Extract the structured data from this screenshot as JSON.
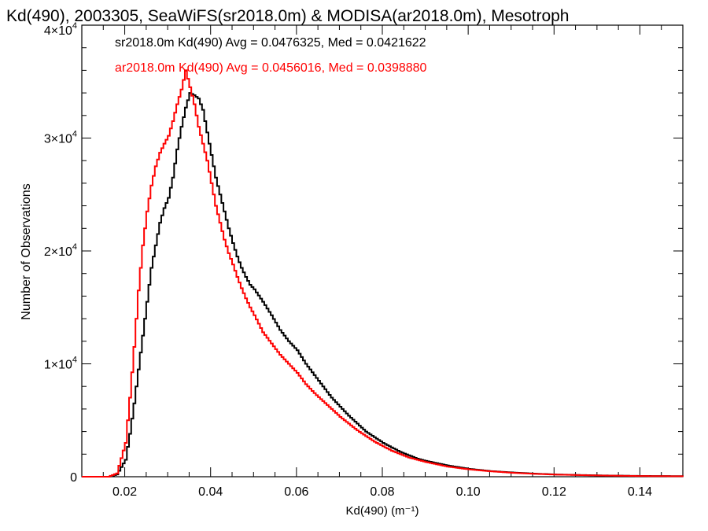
{
  "chart_data": {
    "type": "line",
    "title": "Kd(490), 2003305, SeaWiFS(sr2018.0m) & MODISA(ar2018.0m), Mesotroph",
    "xlabel": "Kd(490) (m⁻¹)",
    "ylabel": "Number of Observations",
    "xlim": [
      0.01,
      0.15
    ],
    "ylim": [
      0,
      40000
    ],
    "x_ticks": [
      0.02,
      0.04,
      0.06,
      0.08,
      0.1,
      0.12,
      0.14
    ],
    "x_tick_labels": [
      "0.02",
      "0.04",
      "0.06",
      "0.08",
      "0.10",
      "0.12",
      "0.14"
    ],
    "y_ticks": [
      0,
      10000,
      20000,
      30000,
      40000
    ],
    "y_tick_labels": [
      {
        "base": "0",
        "exp": ""
      },
      {
        "base": "1×10",
        "exp": "4"
      },
      {
        "base": "2×10",
        "exp": "4"
      },
      {
        "base": "3×10",
        "exp": "4"
      },
      {
        "base": "4×10",
        "exp": "4"
      }
    ],
    "legend": [
      {
        "text": "sr2018.0m Kd(490) Avg = 0.0476325, Med = 0.0421622",
        "color": "#000000"
      },
      {
        "text": "ar2018.0m Kd(490) Avg = 0.0456016, Med = 0.0398880",
        "color": "#ff0000"
      }
    ],
    "legend_placement": "top-left",
    "grid": false,
    "series": [
      {
        "color": "#000000",
        "x": [
          0.01,
          0.016,
          0.018,
          0.02,
          0.021,
          0.022,
          0.023,
          0.024,
          0.025,
          0.026,
          0.027,
          0.028,
          0.029,
          0.03,
          0.031,
          0.032,
          0.033,
          0.034,
          0.035,
          0.036,
          0.037,
          0.038,
          0.039,
          0.04,
          0.041,
          0.042,
          0.043,
          0.044,
          0.045,
          0.046,
          0.047,
          0.048,
          0.049,
          0.05,
          0.052,
          0.054,
          0.056,
          0.058,
          0.06,
          0.062,
          0.064,
          0.066,
          0.068,
          0.07,
          0.072,
          0.074,
          0.076,
          0.078,
          0.08,
          0.082,
          0.084,
          0.086,
          0.088,
          0.09,
          0.095,
          0.1,
          0.105,
          0.11,
          0.115,
          0.12,
          0.13,
          0.14,
          0.15
        ],
        "y": [
          0,
          0,
          200,
          1500,
          3800,
          6500,
          9500,
          12500,
          15500,
          18500,
          20500,
          22500,
          23800,
          24700,
          26500,
          29000,
          31000,
          32700,
          34000,
          33800,
          33500,
          32500,
          30500,
          28500,
          26500,
          25000,
          23500,
          22000,
          20700,
          19500,
          18500,
          17700,
          17000,
          16600,
          15500,
          14300,
          13000,
          12000,
          11200,
          10000,
          9000,
          8000,
          7000,
          6200,
          5400,
          4700,
          4000,
          3500,
          3000,
          2600,
          2200,
          1900,
          1600,
          1400,
          1000,
          700,
          500,
          380,
          280,
          200,
          120,
          70,
          50
        ]
      },
      {
        "color": "#ff0000",
        "x": [
          0.01,
          0.016,
          0.018,
          0.02,
          0.021,
          0.022,
          0.023,
          0.024,
          0.025,
          0.026,
          0.027,
          0.028,
          0.029,
          0.03,
          0.031,
          0.032,
          0.033,
          0.034,
          0.035,
          0.036,
          0.037,
          0.038,
          0.039,
          0.04,
          0.041,
          0.042,
          0.043,
          0.044,
          0.045,
          0.046,
          0.047,
          0.048,
          0.049,
          0.05,
          0.052,
          0.054,
          0.056,
          0.058,
          0.06,
          0.062,
          0.064,
          0.066,
          0.068,
          0.07,
          0.072,
          0.074,
          0.076,
          0.078,
          0.08,
          0.082,
          0.084,
          0.086,
          0.088,
          0.09,
          0.095,
          0.1,
          0.105,
          0.11,
          0.115,
          0.12,
          0.13,
          0.14,
          0.15
        ],
        "y": [
          0,
          0,
          300,
          3000,
          7000,
          11500,
          16500,
          20500,
          23500,
          25800,
          27500,
          28700,
          29500,
          30200,
          31500,
          33000,
          34300,
          36000,
          34500,
          33000,
          31000,
          29500,
          28000,
          26000,
          24000,
          22500,
          21000,
          19800,
          18800,
          17700,
          16700,
          15800,
          15000,
          14300,
          12800,
          11800,
          10800,
          10000,
          9200,
          8200,
          7400,
          6700,
          6000,
          5300,
          4700,
          4100,
          3600,
          3100,
          2700,
          2300,
          2000,
          1700,
          1500,
          1300,
          900,
          650,
          480,
          350,
          260,
          190,
          110,
          60,
          40
        ]
      }
    ]
  }
}
